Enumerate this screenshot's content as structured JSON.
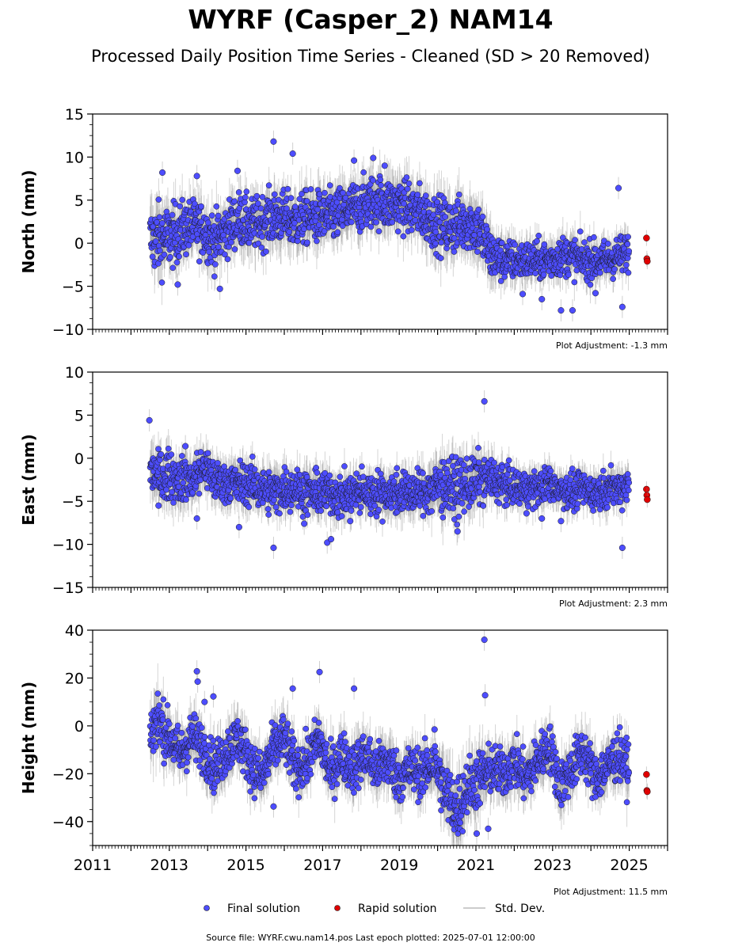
{
  "title": "WYRF (Casper_2) NAM14",
  "subtitle": "Processed Daily Position Time Series - Cleaned (SD > 20 Removed)",
  "footer": "Source file: WYRF.cwu.nam14.pos  Last epoch plotted: 2025-07-01 12:00:00",
  "legend": {
    "final_label": "Final solution",
    "rapid_label": "Rapid solution",
    "sd_label": "Std. Dev."
  },
  "colors": {
    "final": "#4d4dff",
    "rapid": "#e00000",
    "sd": "#888888"
  },
  "x_tick_labels": [
    "2011",
    "2013",
    "2015",
    "2017",
    "2019",
    "2021",
    "2023",
    "2025"
  ],
  "chart_data": [
    {
      "type": "scatter",
      "ylabel": "North (mm)",
      "adjustment": "Plot Adjustment: -1.3 mm",
      "xlim": [
        2011,
        2026
      ],
      "ylim": [
        -10,
        15
      ],
      "yticks": [
        -10,
        -5,
        0,
        5,
        10,
        15
      ],
      "show_x_labels": false,
      "series": [
        {
          "x": [
            2012.5,
            2012.7,
            2013.0,
            2013.3,
            2013.6,
            2013.9,
            2014.2,
            2014.5,
            2014.8,
            2015.1,
            2015.4,
            2015.7,
            2016.0,
            2016.3,
            2016.6,
            2016.9,
            2017.2,
            2017.5,
            2017.8,
            2018.1,
            2018.4,
            2018.7,
            2019.0,
            2019.3,
            2019.6,
            2019.9,
            2020.2,
            2020.5,
            2020.8,
            2021.1,
            2021.4,
            2021.7,
            2022.0,
            2022.3,
            2022.6,
            2022.9,
            2023.2,
            2023.5,
            2023.8,
            2024.1,
            2024.4,
            2024.7,
            2025.0
          ],
          "y": [
            0.5,
            0.5,
            0.6,
            1.5,
            2.0,
            1.5,
            0.2,
            1.5,
            3.0,
            2.0,
            2.5,
            3.0,
            3.0,
            2.5,
            3.0,
            3.0,
            3.0,
            3.5,
            4.0,
            4.5,
            5.0,
            4.5,
            4.5,
            4.0,
            3.5,
            2.5,
            2.0,
            2.0,
            2.5,
            1.5,
            -1.5,
            -2.0,
            -2.0,
            -2.0,
            -2.0,
            -2.0,
            -1.5,
            -1.5,
            -2.0,
            -2.0,
            -2.0,
            -1.5,
            -1.0
          ],
          "spread": [
            1.8,
            2.0,
            1.8,
            1.6,
            1.5,
            1.5,
            1.6,
            1.5,
            1.5,
            1.5,
            1.5,
            1.5,
            1.5,
            1.5,
            1.5,
            1.5,
            1.5,
            1.5,
            1.5,
            1.5,
            1.5,
            1.5,
            1.5,
            1.5,
            1.5,
            1.5,
            1.6,
            1.6,
            1.5,
            1.6,
            1.4,
            1.2,
            1.1,
            1.1,
            1.1,
            1.1,
            1.1,
            1.1,
            1.1,
            1.1,
            1.1,
            1.1,
            1.1
          ]
        },
        {
          "name": "outliers",
          "x": [
            2012.82,
            2013.22,
            2013.72,
            2014.32,
            2014.78,
            2015.72,
            2016.22,
            2017.82,
            2018.32,
            2018.62,
            2022.22,
            2022.72,
            2023.22,
            2023.52,
            2024.12,
            2024.72,
            2024.82
          ],
          "y": [
            8.2,
            -4.8,
            7.8,
            -5.3,
            8.4,
            11.8,
            10.4,
            9.6,
            9.9,
            9.0,
            -5.9,
            -6.5,
            -7.8,
            -7.8,
            -5.8,
            6.4,
            -7.4
          ]
        },
        {
          "name": "rapid",
          "x": [
            2025.45,
            2025.46,
            2025.47
          ],
          "y": [
            0.6,
            -1.8,
            -2.1
          ]
        }
      ]
    },
    {
      "type": "scatter",
      "ylabel": "East (mm)",
      "adjustment": "Plot Adjustment: 2.3 mm",
      "xlim": [
        2011,
        2026
      ],
      "ylim": [
        -15,
        10
      ],
      "yticks": [
        -15,
        -10,
        -5,
        0,
        5,
        10
      ],
      "show_x_labels": false,
      "series": [
        {
          "x": [
            2012.5,
            2012.7,
            2013.0,
            2013.3,
            2013.6,
            2013.9,
            2014.2,
            2014.5,
            2014.8,
            2015.1,
            2015.4,
            2015.7,
            2016.0,
            2016.3,
            2016.6,
            2016.9,
            2017.2,
            2017.5,
            2017.8,
            2018.1,
            2018.4,
            2018.7,
            2019.0,
            2019.3,
            2019.6,
            2019.9,
            2020.2,
            2020.5,
            2020.8,
            2021.1,
            2021.4,
            2021.7,
            2022.0,
            2022.3,
            2022.6,
            2022.9,
            2023.2,
            2023.5,
            2023.8,
            2024.1,
            2024.4,
            2024.7,
            2025.0
          ],
          "y": [
            -1.5,
            -2.0,
            -2.0,
            -2.5,
            -2.5,
            -1.0,
            -2.5,
            -2.8,
            -3.0,
            -3.0,
            -3.5,
            -4.0,
            -3.5,
            -3.5,
            -4.0,
            -4.0,
            -4.0,
            -4.5,
            -4.0,
            -4.0,
            -4.0,
            -4.0,
            -4.0,
            -4.0,
            -4.0,
            -3.5,
            -3.0,
            -3.5,
            -3.0,
            -2.5,
            -2.5,
            -3.0,
            -3.5,
            -3.5,
            -3.5,
            -3.0,
            -3.5,
            -4.0,
            -3.5,
            -4.0,
            -3.5,
            -3.5,
            -3.0
          ],
          "spread": [
            1.4,
            1.4,
            1.3,
            1.3,
            1.3,
            1.2,
            1.2,
            1.2,
            1.2,
            1.2,
            1.2,
            1.2,
            1.2,
            1.2,
            1.2,
            1.2,
            1.2,
            1.2,
            1.2,
            1.2,
            1.2,
            1.2,
            1.2,
            1.2,
            1.2,
            1.4,
            1.6,
            1.6,
            1.5,
            1.4,
            1.2,
            1.1,
            1.0,
            1.0,
            1.0,
            1.0,
            1.0,
            1.0,
            1.0,
            1.0,
            1.0,
            1.0,
            1.0
          ]
        },
        {
          "name": "outliers",
          "x": [
            2012.48,
            2012.72,
            2013.42,
            2013.72,
            2014.82,
            2015.72,
            2016.52,
            2017.12,
            2017.22,
            2017.72,
            2020.52,
            2021.22,
            2022.32,
            2022.72,
            2023.22,
            2024.82
          ],
          "y": [
            4.4,
            -5.5,
            1.4,
            -7.0,
            -8.0,
            -10.4,
            -7.6,
            -9.8,
            -9.4,
            -7.3,
            -8.5,
            6.6,
            -6.4,
            -7.0,
            -7.3,
            -10.4
          ]
        },
        {
          "name": "rapid",
          "x": [
            2025.45,
            2025.46,
            2025.47
          ],
          "y": [
            -3.6,
            -4.3,
            -4.8
          ]
        }
      ]
    },
    {
      "type": "scatter",
      "ylabel": "Height (mm)",
      "adjustment": "Plot Adjustment: 11.5 mm",
      "xlim": [
        2011,
        2026
      ],
      "ylim": [
        -50,
        40
      ],
      "yticks": [
        -40,
        -20,
        0,
        20,
        40
      ],
      "show_x_labels": true,
      "series": [
        {
          "x": [
            2012.5,
            2012.7,
            2013.0,
            2013.3,
            2013.6,
            2013.9,
            2014.2,
            2014.5,
            2014.8,
            2015.1,
            2015.4,
            2015.7,
            2016.0,
            2016.3,
            2016.6,
            2016.9,
            2017.2,
            2017.5,
            2017.8,
            2018.1,
            2018.4,
            2018.7,
            2019.0,
            2019.3,
            2019.6,
            2019.9,
            2020.2,
            2020.5,
            2020.8,
            2021.1,
            2021.4,
            2021.7,
            2022.0,
            2022.3,
            2022.6,
            2022.9,
            2023.2,
            2023.5,
            2023.8,
            2024.1,
            2024.4,
            2024.7,
            2025.0
          ],
          "y": [
            -2,
            2,
            -5,
            -12,
            -4,
            -10,
            -18,
            -10,
            -5,
            -15,
            -22,
            -10,
            -5,
            -18,
            -15,
            -5,
            -20,
            -12,
            -18,
            -12,
            -18,
            -15,
            -22,
            -18,
            -20,
            -15,
            -28,
            -35,
            -25,
            -22,
            -18,
            -20,
            -15,
            -22,
            -15,
            -8,
            -25,
            -18,
            -10,
            -22,
            -18,
            -12,
            -18
          ],
          "spread": [
            6,
            6,
            5,
            5,
            5,
            5,
            5,
            5,
            5,
            5,
            5,
            5,
            5,
            5,
            5,
            5,
            5,
            5,
            5,
            5,
            5,
            5,
            5,
            5,
            5,
            5,
            6,
            7,
            6,
            6,
            5,
            5,
            5,
            5,
            5,
            5,
            5,
            5,
            5,
            5,
            5,
            5,
            5
          ]
        },
        {
          "name": "outliers",
          "x": [
            2013.72,
            2013.74,
            2013.92,
            2014.15,
            2015.72,
            2016.22,
            2016.92,
            2017.82,
            2019.92,
            2021.22,
            2021.24,
            2021.32,
            2021.02
          ],
          "y": [
            22.8,
            18.5,
            10.0,
            12.3,
            -33.7,
            15.6,
            22.5,
            15.6,
            -1.5,
            36.0,
            12.8,
            -43.0,
            -45.0
          ]
        },
        {
          "name": "rapid",
          "x": [
            2025.45,
            2025.46,
            2025.47
          ],
          "y": [
            -20.3,
            -27.0,
            -27.5
          ]
        }
      ]
    }
  ]
}
